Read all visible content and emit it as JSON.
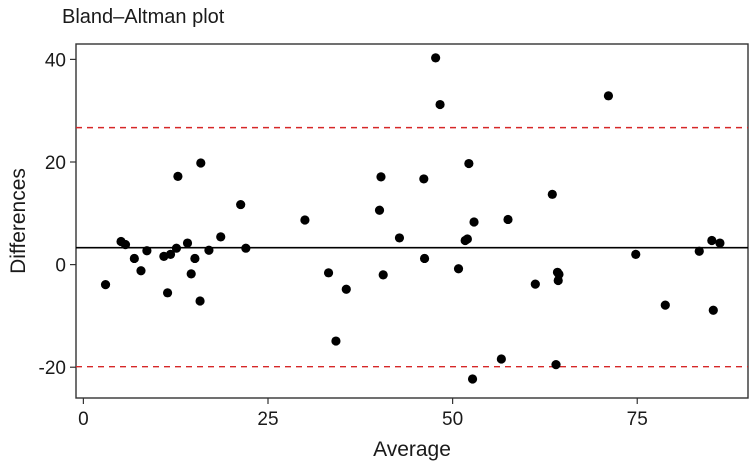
{
  "chart_data": {
    "type": "scatter",
    "title": "Bland–Altman plot",
    "xlabel": "Average",
    "ylabel": "Differences",
    "xlim": [
      -1,
      90
    ],
    "ylim": [
      -26,
      43
    ],
    "x_ticks": [
      0,
      25,
      50,
      75
    ],
    "y_ticks": [
      -20,
      0,
      20,
      40
    ],
    "grid": false,
    "reference_lines": {
      "mean_difference": 3.3,
      "upper_limit": 26.7,
      "lower_limit": -19.9
    },
    "colors": {
      "points": "#000000",
      "mean_line": "#000000",
      "limit_lines": "#d62728"
    },
    "points": [
      {
        "x": 3.0,
        "y": -3.9
      },
      {
        "x": 5.1,
        "y": 4.5
      },
      {
        "x": 5.7,
        "y": 3.9
      },
      {
        "x": 6.9,
        "y": 1.2
      },
      {
        "x": 7.8,
        "y": -1.2
      },
      {
        "x": 8.6,
        "y": 2.7
      },
      {
        "x": 10.9,
        "y": 1.6
      },
      {
        "x": 11.4,
        "y": -5.5
      },
      {
        "x": 11.8,
        "y": 2.0
      },
      {
        "x": 12.6,
        "y": 3.2
      },
      {
        "x": 12.8,
        "y": 17.2
      },
      {
        "x": 14.1,
        "y": 4.2
      },
      {
        "x": 14.6,
        "y": -1.8
      },
      {
        "x": 15.1,
        "y": 1.2
      },
      {
        "x": 15.8,
        "y": -7.1
      },
      {
        "x": 15.9,
        "y": 19.8
      },
      {
        "x": 17.0,
        "y": 2.8
      },
      {
        "x": 18.6,
        "y": 5.4
      },
      {
        "x": 21.3,
        "y": 11.7
      },
      {
        "x": 22.0,
        "y": 3.2
      },
      {
        "x": 30.0,
        "y": 8.7
      },
      {
        "x": 33.2,
        "y": -1.6
      },
      {
        "x": 34.2,
        "y": -14.9
      },
      {
        "x": 35.6,
        "y": -4.8
      },
      {
        "x": 40.1,
        "y": 10.6
      },
      {
        "x": 40.3,
        "y": 17.1
      },
      {
        "x": 40.6,
        "y": -2.0
      },
      {
        "x": 42.8,
        "y": 5.2
      },
      {
        "x": 46.1,
        "y": 16.7
      },
      {
        "x": 46.2,
        "y": 1.2
      },
      {
        "x": 47.7,
        "y": 40.3
      },
      {
        "x": 48.3,
        "y": 31.2
      },
      {
        "x": 50.8,
        "y": -0.8
      },
      {
        "x": 51.7,
        "y": 4.7
      },
      {
        "x": 52.0,
        "y": 5.0
      },
      {
        "x": 52.2,
        "y": 19.7
      },
      {
        "x": 52.7,
        "y": -22.3
      },
      {
        "x": 52.9,
        "y": 8.3
      },
      {
        "x": 56.6,
        "y": -18.4
      },
      {
        "x": 57.5,
        "y": 8.8
      },
      {
        "x": 61.2,
        "y": -3.8
      },
      {
        "x": 63.5,
        "y": 13.7
      },
      {
        "x": 64.0,
        "y": -19.5
      },
      {
        "x": 64.2,
        "y": -1.5
      },
      {
        "x": 64.3,
        "y": -3.1
      },
      {
        "x": 64.4,
        "y": -1.9
      },
      {
        "x": 71.1,
        "y": 32.9
      },
      {
        "x": 74.8,
        "y": 2.0
      },
      {
        "x": 78.8,
        "y": -7.9
      },
      {
        "x": 83.4,
        "y": 2.6
      },
      {
        "x": 85.1,
        "y": 4.7
      },
      {
        "x": 85.3,
        "y": -8.9
      },
      {
        "x": 86.2,
        "y": 4.2
      }
    ]
  }
}
